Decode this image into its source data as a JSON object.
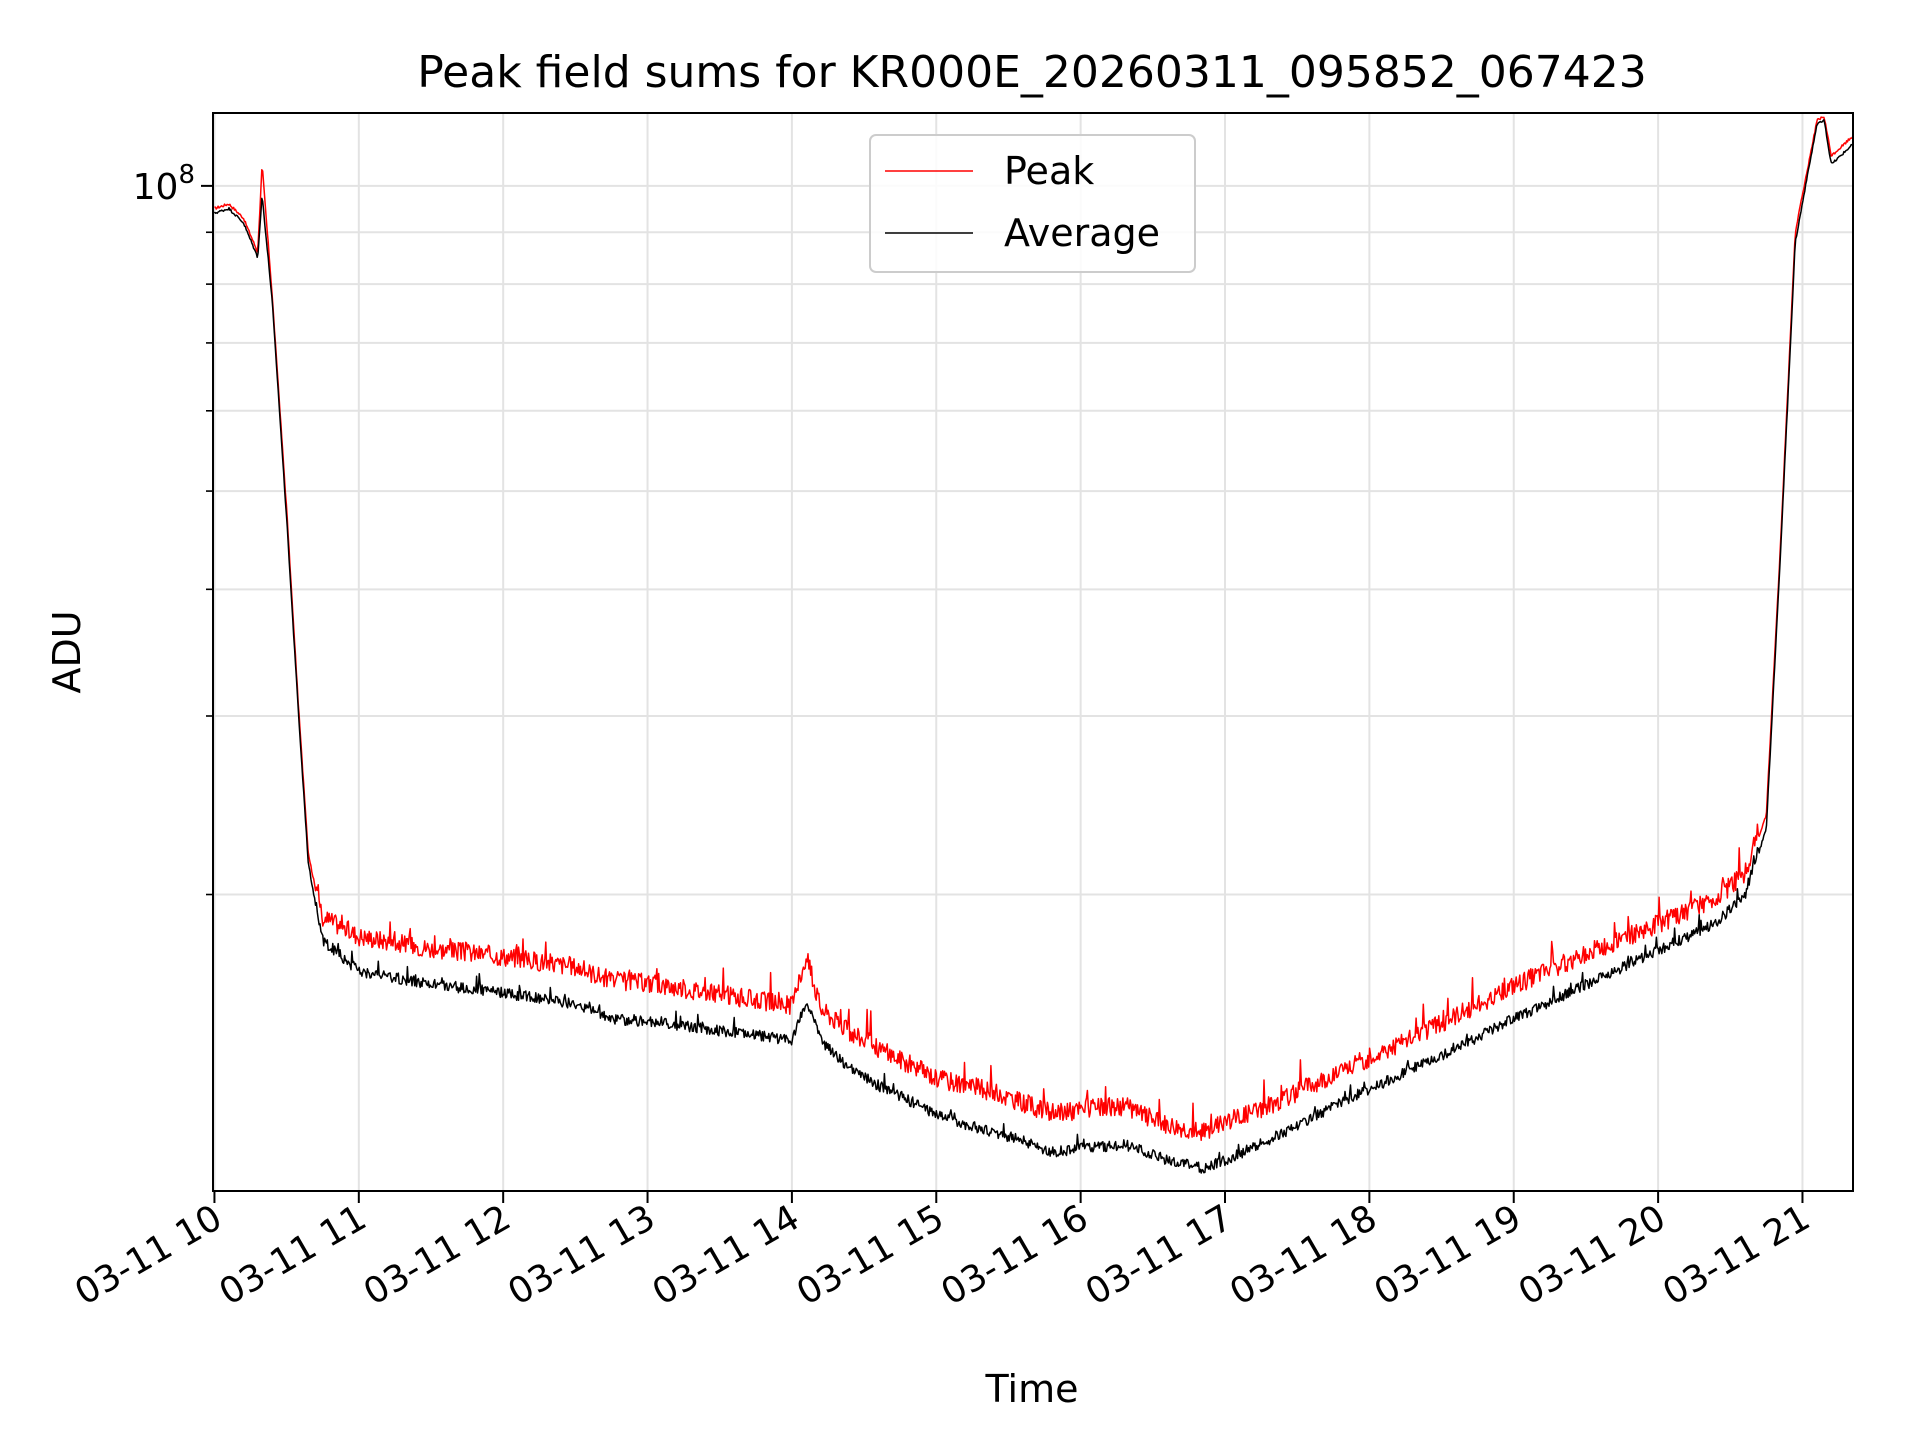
{
  "chart_data": {
    "type": "line",
    "title": "Peak field sums for KR000E_20260311_095852_067423",
    "xlabel": "Time",
    "ylabel": "ADU",
    "yscale": "log",
    "ylim": [
      10200000,
      118000000
    ],
    "xlim": [
      9.99,
      21.35
    ],
    "x_unit": "hour of day 2026-03-11",
    "grid": true,
    "legend_position": "upper center",
    "x_ticks": [
      {
        "value": 10,
        "label": "03-11 10"
      },
      {
        "value": 11,
        "label": "03-11 11"
      },
      {
        "value": 12,
        "label": "03-11 12"
      },
      {
        "value": 13,
        "label": "03-11 13"
      },
      {
        "value": 14,
        "label": "03-11 14"
      },
      {
        "value": 15,
        "label": "03-11 15"
      },
      {
        "value": 16,
        "label": "03-11 16"
      },
      {
        "value": 17,
        "label": "03-11 17"
      },
      {
        "value": 18,
        "label": "03-11 18"
      },
      {
        "value": 19,
        "label": "03-11 19"
      },
      {
        "value": 20,
        "label": "03-11 20"
      },
      {
        "value": 21,
        "label": "03-11 21"
      }
    ],
    "y_major_ticks": [
      {
        "value": 100000000,
        "base": "10",
        "exp": "8"
      }
    ],
    "y_minor_ticks": [
      20000000,
      30000000,
      40000000,
      50000000,
      60000000,
      70000000,
      80000000,
      90000000
    ],
    "series": [
      {
        "name": "Peak",
        "color": "#ff0000",
        "x": [
          10.0,
          10.1,
          10.2,
          10.3,
          10.33,
          10.4,
          10.5,
          10.58,
          10.65,
          10.75,
          11.0,
          11.5,
          12.0,
          12.5,
          12.75,
          13.0,
          13.5,
          14.0,
          14.1,
          14.2,
          14.4,
          14.6,
          15.0,
          15.3,
          15.6,
          15.8,
          16.0,
          16.3,
          16.6,
          16.85,
          17.0,
          17.3,
          17.6,
          18.0,
          18.5,
          19.0,
          19.5,
          20.0,
          20.4,
          20.6,
          20.75,
          20.85,
          20.95,
          21.1,
          21.15,
          21.2,
          21.35
        ],
        "y": [
          95000000,
          96000000,
          93000000,
          86000000,
          105000000,
          78000000,
          48000000,
          31000000,
          22000000,
          18600000,
          17800000,
          17300000,
          17000000,
          16600000,
          16100000,
          16000000,
          15600000,
          15200000,
          17000000,
          15100000,
          14300000,
          13800000,
          12900000,
          12600000,
          12200000,
          11900000,
          12000000,
          12100000,
          11600000,
          11400000,
          11700000,
          12100000,
          12700000,
          13500000,
          14600000,
          15900000,
          17100000,
          18300000,
          19400000,
          20500000,
          24000000,
          45000000,
          90000000,
          116000000,
          117000000,
          107000000,
          112000000
        ]
      },
      {
        "name": "Average",
        "color": "#000000",
        "x": [
          10.0,
          10.1,
          10.2,
          10.3,
          10.33,
          10.4,
          10.5,
          10.58,
          10.65,
          10.75,
          11.0,
          11.5,
          12.0,
          12.5,
          12.75,
          13.0,
          13.5,
          14.0,
          14.1,
          14.2,
          14.4,
          14.6,
          15.0,
          15.3,
          15.6,
          15.8,
          16.0,
          16.3,
          16.6,
          16.85,
          17.0,
          17.3,
          17.6,
          18.0,
          18.5,
          19.0,
          19.5,
          20.0,
          20.4,
          20.6,
          20.75,
          20.85,
          20.95,
          21.1,
          21.15,
          21.2,
          21.35
        ],
        "y": [
          94000000,
          95000000,
          92000000,
          85000000,
          98000000,
          77000000,
          47000000,
          30500000,
          21500000,
          17800000,
          16600000,
          16100000,
          15800000,
          15400000,
          14900000,
          14800000,
          14500000,
          14200000,
          15500000,
          14200000,
          13300000,
          12800000,
          12000000,
          11600000,
          11300000,
          11000000,
          11100000,
          11200000,
          10800000,
          10600000,
          10800000,
          11300000,
          11900000,
          12700000,
          13700000,
          14900000,
          16100000,
          17400000,
          18500000,
          19700000,
          23300000,
          44000000,
          88000000,
          115000000,
          116000000,
          105000000,
          110000000
        ]
      }
    ]
  }
}
